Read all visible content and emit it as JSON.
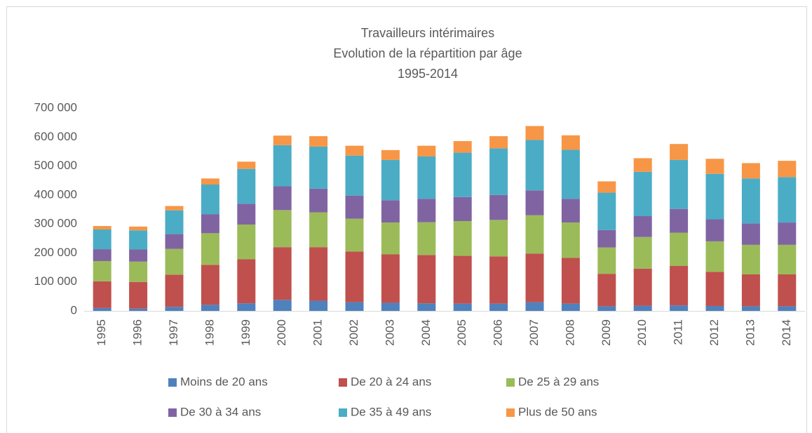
{
  "chart_data": {
    "type": "stacked_bar",
    "title": [
      "Travailleurs intérimaires",
      "Evolution de la répartition par âge",
      "1995-2014"
    ],
    "categories": [
      "1995",
      "1996",
      "1997",
      "1998",
      "1999",
      "2000",
      "2001",
      "2002",
      "2003",
      "2004",
      "2005",
      "2006",
      "2007",
      "2008",
      "2009",
      "2010",
      "2011",
      "2012",
      "2013",
      "2014"
    ],
    "series": [
      {
        "name": "Moins de 20 ans",
        "color": "#4f81bd",
        "values": [
          10000,
          8000,
          14000,
          21000,
          26000,
          38000,
          35000,
          30000,
          28000,
          26000,
          25000,
          25000,
          30000,
          25000,
          16000,
          18000,
          19000,
          17000,
          16000,
          16000
        ]
      },
      {
        "name": "De 20 à 24 ans",
        "color": "#c0504d",
        "values": [
          92000,
          92000,
          111000,
          138000,
          152000,
          182000,
          185000,
          175000,
          167000,
          167000,
          165000,
          163000,
          168000,
          158000,
          112000,
          128000,
          136000,
          118000,
          110000,
          110000
        ]
      },
      {
        "name": "De 25 à 29 ans",
        "color": "#9bbb59",
        "values": [
          70000,
          70000,
          89000,
          109000,
          120000,
          128000,
          120000,
          113000,
          110000,
          113000,
          120000,
          126000,
          132000,
          122000,
          91000,
          109000,
          115000,
          105000,
          102000,
          102000
        ]
      },
      {
        "name": "De 30 à 34 ans",
        "color": "#8064a2",
        "values": [
          41000,
          42000,
          51000,
          66000,
          72000,
          82000,
          82000,
          80000,
          77000,
          81000,
          83000,
          86000,
          86000,
          82000,
          60000,
          72000,
          82000,
          76000,
          74000,
          77000
        ]
      },
      {
        "name": "De 35 à 49 ans",
        "color": "#4bacc6",
        "values": [
          68000,
          66000,
          82000,
          102000,
          120000,
          142000,
          145000,
          138000,
          139000,
          146000,
          153000,
          161000,
          174000,
          169000,
          129000,
          153000,
          169000,
          157000,
          155000,
          157000
        ]
      },
      {
        "name": "Plus de 50 ans",
        "color": "#f79646",
        "values": [
          12000,
          13000,
          15000,
          21000,
          25000,
          33000,
          36000,
          34000,
          34000,
          37000,
          40000,
          42000,
          48000,
          50000,
          39000,
          47000,
          55000,
          52000,
          53000,
          56000
        ]
      }
    ],
    "ylim": [
      0,
      700000
    ],
    "yticks": [
      0,
      {
        "value": 100000,
        "label": "100 000"
      },
      {
        "value": 200000,
        "label": "200 000"
      },
      {
        "value": 300000,
        "label": "300 000"
      },
      {
        "value": 400000,
        "label": "400 000"
      },
      {
        "value": 500000,
        "label": "500 000"
      },
      {
        "value": 600000,
        "label": "600 000"
      },
      {
        "value": 700000,
        "label": "700 000"
      }
    ],
    "grid": false
  }
}
